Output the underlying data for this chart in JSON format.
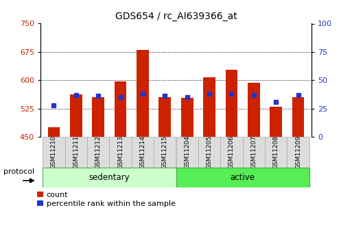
{
  "title": "GDS654 / rc_AI639366_at",
  "samples": [
    "GSM11210",
    "GSM11211",
    "GSM11212",
    "GSM11213",
    "GSM11214",
    "GSM11215",
    "GSM11204",
    "GSM11205",
    "GSM11206",
    "GSM11207",
    "GSM11208",
    "GSM11209"
  ],
  "count_values": [
    475,
    562,
    556,
    597,
    681,
    555,
    554,
    607,
    627,
    594,
    530,
    556
  ],
  "percentile_values": [
    28,
    37,
    36,
    35,
    38,
    36,
    35,
    38,
    38,
    37,
    31,
    37
  ],
  "sedentary_indices": [
    0,
    1,
    2,
    3,
    4,
    5
  ],
  "active_indices": [
    6,
    7,
    8,
    9,
    10,
    11
  ],
  "ylim_left": [
    450,
    750
  ],
  "ylim_right": [
    0,
    100
  ],
  "yticks_left": [
    450,
    525,
    600,
    675,
    750
  ],
  "yticks_right": [
    0,
    25,
    50,
    75,
    100
  ],
  "bar_color": "#cc2200",
  "dot_color": "#2233cc",
  "bar_color_left": "#cc2200",
  "tick_color_right": "#2233cc",
  "bar_width": 0.55,
  "base_value": 450,
  "title_fontsize": 10,
  "tick_fontsize": 8,
  "sample_fontsize": 6.5,
  "group_fontsize": 8.5,
  "legend_fontsize": 8,
  "sedentary_color": "#ccffcc",
  "active_color": "#55ee55",
  "sample_box_color": "#dddddd",
  "sample_box_edge": "#aaaaaa",
  "protocol_label": "protocol",
  "legend_count": "count",
  "legend_percentile": "percentile rank within the sample"
}
